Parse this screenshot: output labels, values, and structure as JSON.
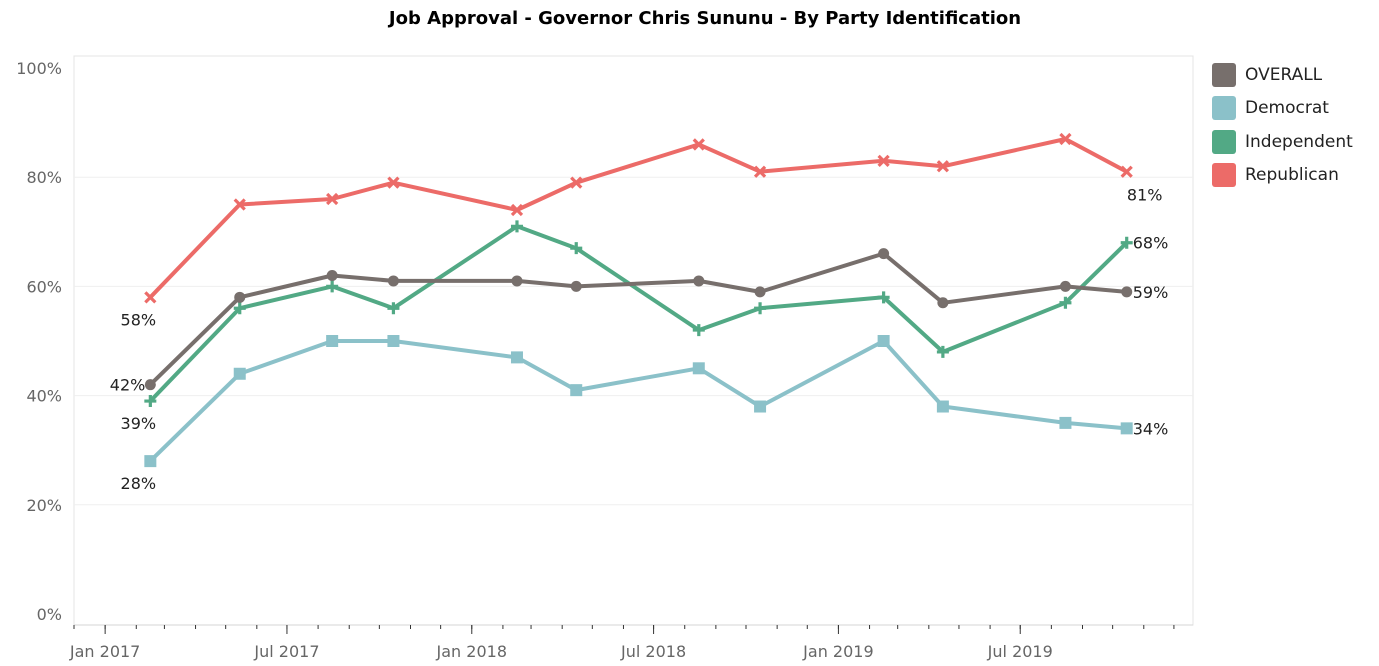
{
  "chart_data": {
    "type": "line",
    "title": "Job Approval - Governor Chris Sununu - By Party Identification",
    "xlabel": "",
    "ylabel": "",
    "ylim": [
      0,
      100
    ],
    "y_ticks": [
      "0%",
      "20%",
      "40%",
      "60%",
      "80%",
      "100%"
    ],
    "x_ticks": [
      "Jan 2017",
      "Jul 2017",
      "Jan 2018",
      "Jul 2018",
      "Jan 2019",
      "Jul 2019"
    ],
    "x_dates": [
      "2017-02-15",
      "2017-05-15",
      "2017-08-15",
      "2017-10-15",
      "2018-02-15",
      "2018-04-15",
      "2018-08-15",
      "2018-10-15",
      "2019-02-15",
      "2019-04-15",
      "2019-08-15",
      "2019-10-15"
    ],
    "grid": true,
    "legend_position": "right",
    "series": [
      {
        "name": "OVERALL",
        "color": "#776f6c",
        "marker": "circle",
        "values": [
          42,
          58,
          62,
          61,
          61,
          60,
          61,
          59,
          66,
          57,
          60,
          59
        ],
        "labels": [
          {
            "index": 0,
            "text": "42%"
          },
          {
            "index": 11,
            "text": "59%"
          }
        ]
      },
      {
        "name": "Democrat",
        "color": "#8bc1c9",
        "marker": "square",
        "values": [
          28,
          44,
          50,
          50,
          47,
          41,
          45,
          38,
          50,
          38,
          35,
          34
        ],
        "labels": [
          {
            "index": 0,
            "text": "28%"
          },
          {
            "index": 11,
            "text": "34%"
          }
        ]
      },
      {
        "name": "Independent",
        "color": "#52a985",
        "marker": "plus",
        "values": [
          39,
          56,
          60,
          56,
          71,
          67,
          52,
          56,
          58,
          48,
          57,
          68
        ],
        "labels": [
          {
            "index": 0,
            "text": "39%"
          },
          {
            "index": 11,
            "text": "68%"
          }
        ]
      },
      {
        "name": "Republican",
        "color": "#ec6b68",
        "marker": "cross",
        "values": [
          58,
          75,
          76,
          79,
          74,
          79,
          86,
          81,
          83,
          82,
          87,
          81
        ],
        "labels": [
          {
            "index": 0,
            "text": "58%"
          },
          {
            "index": 11,
            "text": "81%"
          }
        ]
      }
    ]
  }
}
